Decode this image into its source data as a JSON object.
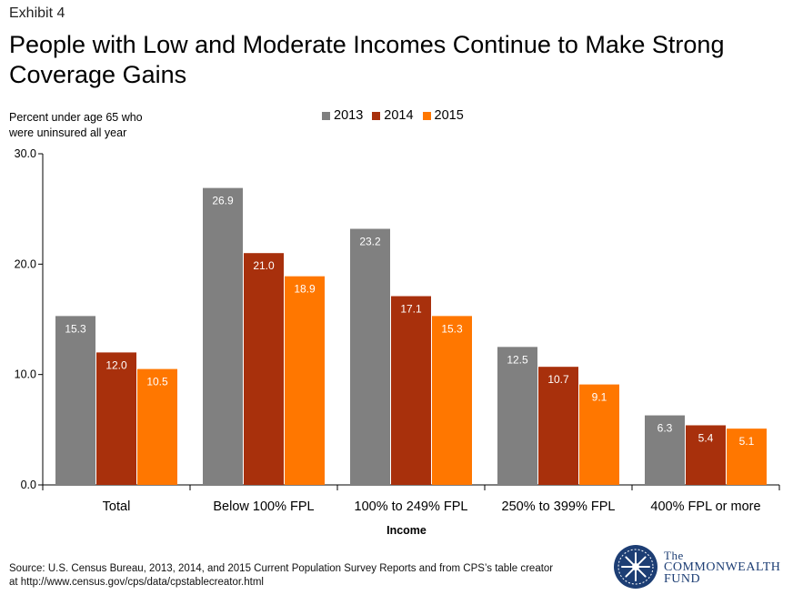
{
  "exhibit_label": "Exhibit 4",
  "title": "People with Low and Moderate Incomes Continue to Make Strong Coverage Gains",
  "source_line1": "Source: U.S. Census Bureau, 2013, 2014, and 2015 Current Population Survey Reports and from CPS’s table creator",
  "source_line2": "at http://www.census.gov/cps/data/cpstablecreator.html",
  "logo": {
    "line1": "The",
    "line2": "COMMONWEALTH",
    "line3": "FUND",
    "icon": "star-snowflake-icon"
  },
  "colors": {
    "s2013": "#808080",
    "s2014": "#a8300c",
    "s2015": "#ff7700"
  },
  "chart_data": {
    "type": "bar",
    "title": "People with Low and Moderate Incomes Continue to Make Strong Coverage Gains",
    "xlabel": "Income",
    "ylabel": "Percent under age 65 who were uninsured all year",
    "ylabel_lines": [
      "Percent under age 65 who",
      "were uninsured all year"
    ],
    "ylim": [
      0,
      30
    ],
    "yticks": [
      "0.0",
      "10.0",
      "20.0",
      "30.0"
    ],
    "grid": false,
    "legend_position": "top",
    "categories": [
      "Total",
      "Below 100% FPL",
      "100% to 249% FPL",
      "250% to 399% FPL",
      "400% FPL or more"
    ],
    "series": [
      {
        "name": "2013",
        "values": [
          15.3,
          26.9,
          23.2,
          12.5,
          6.3
        ],
        "labels": [
          "15.3",
          "26.9",
          "23.2",
          "12.5",
          "6.3"
        ]
      },
      {
        "name": "2014",
        "values": [
          12.0,
          21.0,
          17.1,
          10.7,
          5.4
        ],
        "labels": [
          "12.0",
          "21.0",
          "17.1",
          "10.7",
          "5.4"
        ]
      },
      {
        "name": "2015",
        "values": [
          10.5,
          18.9,
          15.3,
          9.1,
          5.1
        ],
        "labels": [
          "10.5",
          "18.9",
          "15.3",
          "9.1",
          "5.1"
        ]
      }
    ]
  }
}
